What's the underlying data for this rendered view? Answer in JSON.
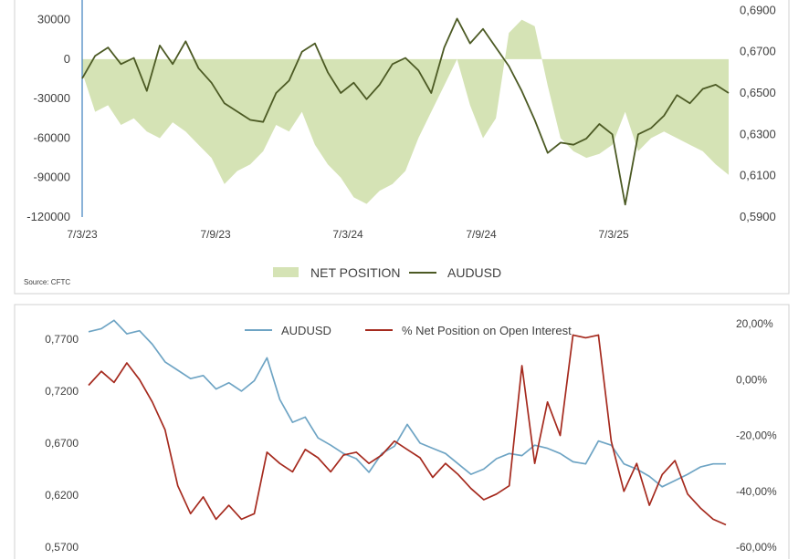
{
  "chart_data": [
    {
      "type": "area",
      "source": "Source: CFTC",
      "x_tick_labels": [
        "7/3/23",
        "7/9/23",
        "7/3/24",
        "7/9/24",
        "7/3/25"
      ],
      "y_left": {
        "ticks": [
          30000,
          0,
          -30000,
          -60000,
          -90000,
          -120000
        ],
        "tick_labels": [
          "30000",
          "0",
          "-30000",
          "-60000",
          "-90000",
          "-120000"
        ],
        "range": [
          -120000,
          45000
        ]
      },
      "y_right": {
        "ticks": [
          0.69,
          0.67,
          0.65,
          0.63,
          0.61,
          0.59
        ],
        "tick_labels": [
          "0,6900",
          "0,6700",
          "0,6500",
          "0,6300",
          "0,6100",
          "0,5900"
        ],
        "range": [
          0.59,
          0.695
        ]
      },
      "legend": {
        "position": "bottom",
        "items": [
          "NET POSITION",
          "AUDUSD"
        ]
      },
      "series": [
        {
          "name": "NET POSITION",
          "axis": "left",
          "color": "#d5e3b5",
          "x": [
            0,
            0.02,
            0.04,
            0.06,
            0.08,
            0.1,
            0.12,
            0.14,
            0.16,
            0.18,
            0.2,
            0.22,
            0.24,
            0.26,
            0.28,
            0.3,
            0.32,
            0.34,
            0.36,
            0.38,
            0.4,
            0.42,
            0.44,
            0.46,
            0.48,
            0.5,
            0.52,
            0.54,
            0.56,
            0.58,
            0.6,
            0.62,
            0.64,
            0.66,
            0.68,
            0.7,
            0.72,
            0.74,
            0.76,
            0.78,
            0.8,
            0.82,
            0.84,
            0.86,
            0.88,
            0.9,
            0.92,
            0.94,
            0.96,
            0.98,
            1.0
          ],
          "values": [
            -10000,
            -40000,
            -35000,
            -50000,
            -45000,
            -55000,
            -60000,
            -48000,
            -55000,
            -65000,
            -75000,
            -95000,
            -85000,
            -80000,
            -70000,
            -50000,
            -55000,
            -40000,
            -65000,
            -80000,
            -90000,
            -105000,
            -110000,
            -100000,
            -95000,
            -85000,
            -60000,
            -40000,
            -20000,
            0,
            -35000,
            -60000,
            -45000,
            20000,
            30000,
            25000,
            -20000,
            -60000,
            -70000,
            -75000,
            -72000,
            -65000,
            -40000,
            -70000,
            -60000,
            -55000,
            -60000,
            -65000,
            -70000,
            -80000,
            -88000
          ]
        },
        {
          "name": "AUDUSD",
          "axis": "right",
          "color": "#4c5a24",
          "x": [
            0,
            0.02,
            0.04,
            0.06,
            0.08,
            0.1,
            0.12,
            0.14,
            0.16,
            0.18,
            0.2,
            0.22,
            0.24,
            0.26,
            0.28,
            0.3,
            0.32,
            0.34,
            0.36,
            0.38,
            0.4,
            0.42,
            0.44,
            0.46,
            0.48,
            0.5,
            0.52,
            0.54,
            0.56,
            0.58,
            0.6,
            0.62,
            0.64,
            0.66,
            0.68,
            0.7,
            0.72,
            0.74,
            0.76,
            0.78,
            0.8,
            0.82,
            0.84,
            0.86,
            0.88,
            0.9,
            0.92,
            0.94,
            0.96,
            0.98,
            1.0
          ],
          "values": [
            0.657,
            0.668,
            0.672,
            0.664,
            0.667,
            0.651,
            0.673,
            0.664,
            0.675,
            0.662,
            0.655,
            0.645,
            0.641,
            0.637,
            0.636,
            0.65,
            0.656,
            0.67,
            0.674,
            0.66,
            0.65,
            0.655,
            0.647,
            0.654,
            0.664,
            0.667,
            0.661,
            0.65,
            0.672,
            0.686,
            0.674,
            0.681,
            0.672,
            0.663,
            0.651,
            0.637,
            0.621,
            0.626,
            0.625,
            0.628,
            0.635,
            0.63,
            0.596,
            0.63,
            0.633,
            0.639,
            0.649,
            0.645,
            0.652,
            0.654,
            0.65
          ]
        }
      ]
    },
    {
      "type": "line",
      "x_tick_labels": [
        "",
        "",
        "",
        "",
        "",
        "",
        "",
        "",
        "",
        ""
      ],
      "y_left": {
        "ticks": [
          0.77,
          0.72,
          0.67,
          0.62,
          0.57
        ],
        "tick_labels": [
          "0,7700",
          "0,7200",
          "0,6700",
          "0,6200",
          "0,5700"
        ],
        "range": [
          0.57,
          0.79
        ]
      },
      "y_right": {
        "ticks": [
          0.2,
          0.0,
          -0.2,
          -0.4,
          -0.6
        ],
        "tick_labels": [
          "20,00%",
          "0,00%",
          "-20,00%",
          "-40,00%",
          "-60,00%"
        ],
        "range": [
          -0.6,
          0.22
        ]
      },
      "legend": {
        "position": "top",
        "items": [
          "AUDUSD",
          "% Net Position on Open Interest"
        ]
      },
      "series": [
        {
          "name": "AUDUSD",
          "axis": "left",
          "color": "#6ea4c4",
          "x": [
            0,
            0.02,
            0.04,
            0.06,
            0.08,
            0.1,
            0.12,
            0.14,
            0.16,
            0.18,
            0.2,
            0.22,
            0.24,
            0.26,
            0.28,
            0.3,
            0.32,
            0.34,
            0.36,
            0.38,
            0.4,
            0.42,
            0.44,
            0.46,
            0.48,
            0.5,
            0.52,
            0.54,
            0.56,
            0.58,
            0.6,
            0.62,
            0.64,
            0.66,
            0.68,
            0.7,
            0.72,
            0.74,
            0.76,
            0.78,
            0.8,
            0.82,
            0.84,
            0.86,
            0.88,
            0.9,
            0.92,
            0.94,
            0.96,
            0.98,
            1.0
          ],
          "values": [
            0.777,
            0.78,
            0.788,
            0.775,
            0.778,
            0.765,
            0.748,
            0.74,
            0.732,
            0.735,
            0.722,
            0.728,
            0.72,
            0.73,
            0.752,
            0.712,
            0.69,
            0.695,
            0.675,
            0.668,
            0.66,
            0.655,
            0.642,
            0.66,
            0.667,
            0.688,
            0.67,
            0.665,
            0.66,
            0.65,
            0.64,
            0.645,
            0.655,
            0.66,
            0.658,
            0.668,
            0.665,
            0.66,
            0.652,
            0.65,
            0.672,
            0.668,
            0.65,
            0.645,
            0.638,
            0.628,
            0.634,
            0.64,
            0.647,
            0.65,
            0.65
          ]
        },
        {
          "name": "% Net Position on Open Interest",
          "axis": "right",
          "color": "#a52a1e",
          "x": [
            0,
            0.02,
            0.04,
            0.06,
            0.08,
            0.1,
            0.12,
            0.14,
            0.16,
            0.18,
            0.2,
            0.22,
            0.24,
            0.26,
            0.28,
            0.3,
            0.32,
            0.34,
            0.36,
            0.38,
            0.4,
            0.42,
            0.44,
            0.46,
            0.48,
            0.5,
            0.52,
            0.54,
            0.56,
            0.58,
            0.6,
            0.62,
            0.64,
            0.66,
            0.68,
            0.7,
            0.72,
            0.74,
            0.76,
            0.78,
            0.8,
            0.82,
            0.84,
            0.86,
            0.88,
            0.9,
            0.92,
            0.94,
            0.96,
            0.98,
            1.0
          ],
          "values": [
            -0.02,
            0.03,
            -0.01,
            0.06,
            0.0,
            -0.08,
            -0.18,
            -0.38,
            -0.48,
            -0.42,
            -0.5,
            -0.45,
            -0.5,
            -0.48,
            -0.26,
            -0.3,
            -0.33,
            -0.25,
            -0.28,
            -0.33,
            -0.27,
            -0.26,
            -0.3,
            -0.27,
            -0.22,
            -0.25,
            -0.28,
            -0.35,
            -0.3,
            -0.34,
            -0.39,
            -0.43,
            -0.41,
            -0.38,
            0.05,
            -0.3,
            -0.08,
            -0.2,
            0.16,
            0.15,
            0.16,
            -0.22,
            -0.4,
            -0.3,
            -0.45,
            -0.34,
            -0.29,
            -0.41,
            -0.46,
            -0.5,
            -0.52
          ]
        }
      ]
    }
  ]
}
